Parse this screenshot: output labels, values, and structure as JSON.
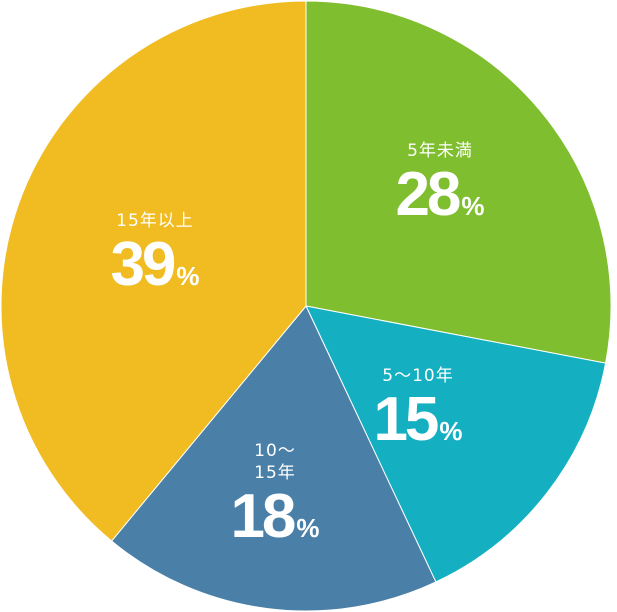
{
  "chart_data": {
    "type": "pie",
    "start": "top",
    "direction": "clockwise",
    "unit": "%",
    "slices": [
      {
        "label": "5年未満",
        "value": 28,
        "color": "#7fbe2f"
      },
      {
        "label": "5〜10年",
        "value": 15,
        "color": "#14b0c1"
      },
      {
        "label": "10〜\n15年",
        "value": 18,
        "color": "#4a80a8"
      },
      {
        "label": "15年以上",
        "value": 39,
        "color": "#f0bc21"
      }
    ]
  }
}
